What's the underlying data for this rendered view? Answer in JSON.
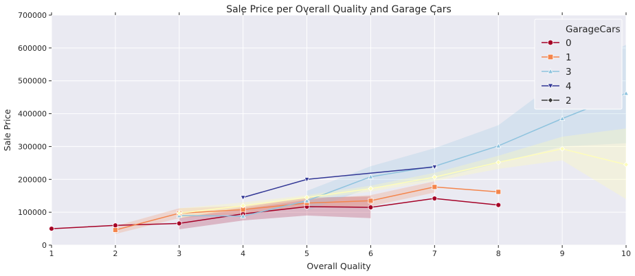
{
  "chart_data": {
    "type": "line",
    "title": "Sale Price per Overall Quality and Garage Cars",
    "xlabel": "Overall Quality",
    "ylabel": "Sale Price",
    "xlim": [
      1,
      10
    ],
    "ylim": [
      0,
      700000
    ],
    "x_ticks": [
      1,
      2,
      3,
      4,
      5,
      6,
      7,
      8,
      9,
      10
    ],
    "y_ticks": [
      0,
      100000,
      200000,
      300000,
      400000,
      500000,
      600000,
      700000
    ],
    "grid": true,
    "legend": {
      "title": "GarageCars",
      "placement": "top-right"
    },
    "series": [
      {
        "name": "0",
        "color": "#a50026",
        "marker": "circle",
        "x": [
          1,
          2,
          3,
          4,
          5,
          6,
          7,
          8
        ],
        "y": [
          50000,
          60000,
          66000,
          95000,
          117000,
          115000,
          142000,
          122000
        ],
        "ci_low": [
          null,
          null,
          48000,
          75000,
          90000,
          82000,
          null,
          null
        ],
        "ci_high": [
          null,
          null,
          82000,
          115000,
          145000,
          148000,
          null,
          null
        ]
      },
      {
        "name": "1",
        "color": "#f4854c",
        "marker": "square",
        "x": [
          2,
          3,
          4,
          5,
          6,
          7,
          8
        ],
        "y": [
          46000,
          97000,
          108000,
          128000,
          135000,
          177000,
          162000
        ],
        "ci_low": [
          34000,
          82000,
          96000,
          115000,
          118000,
          160000,
          null
        ],
        "ci_high": [
          58000,
          112000,
          120000,
          140000,
          152000,
          194000,
          null
        ]
      },
      {
        "name": "3",
        "color": "#8ec3de",
        "marker": "triangle-up",
        "x": [
          3,
          4,
          5,
          6,
          7,
          8,
          9,
          10
        ],
        "y": [
          90000,
          88000,
          135000,
          208000,
          240000,
          302000,
          385000,
          462000
        ],
        "ci_low": [
          null,
          null,
          105000,
          175000,
          200000,
          250000,
          300000,
          310000
        ],
        "ci_high": [
          null,
          null,
          165000,
          240000,
          295000,
          365000,
          510000,
          610000
        ]
      },
      {
        "name": "4",
        "color": "#313695",
        "marker": "triangle-down",
        "x": [
          4,
          5,
          7
        ],
        "y": [
          145000,
          200000,
          238000
        ],
        "ci_low": [
          null,
          null,
          null
        ],
        "ci_high": [
          null,
          null,
          null
        ]
      },
      {
        "name": "2",
        "color": "#fefdbb",
        "legend_color": "#3a3a3a",
        "marker": "diamond",
        "x": [
          3,
          4,
          5,
          6,
          7,
          8,
          9,
          10
        ],
        "y": [
          97000,
          120000,
          145000,
          172000,
          207000,
          252000,
          293000,
          245000
        ],
        "ci_low": [
          82000,
          110000,
          138000,
          163000,
          195000,
          232000,
          258000,
          140000
        ],
        "ci_high": [
          112000,
          130000,
          152000,
          181000,
          220000,
          272000,
          330000,
          355000
        ]
      }
    ]
  }
}
